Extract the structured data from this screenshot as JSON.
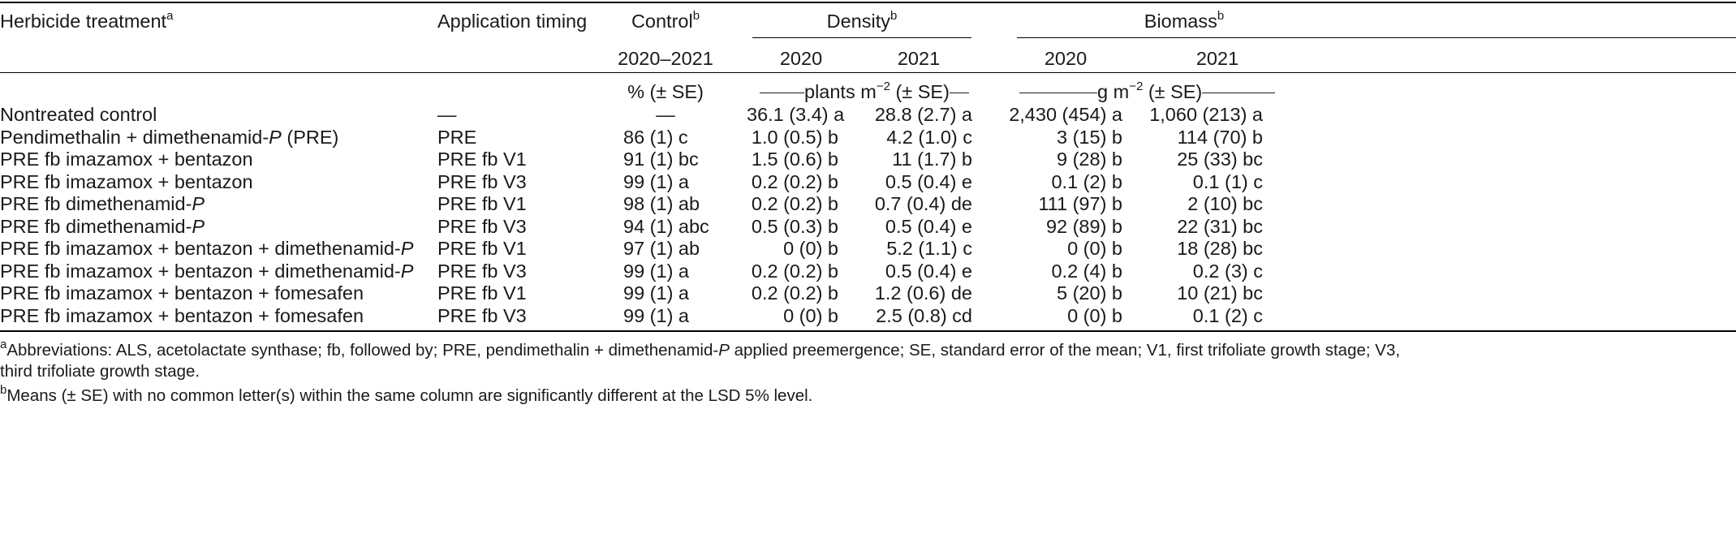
{
  "header": {
    "treatment": "Herbicide treatment",
    "treatment_sup": "a",
    "timing": "Application timing",
    "control": "Control",
    "control_sup": "b",
    "density": "Density",
    "density_sup": "b",
    "biomass": "Biomass",
    "biomass_sup": "b",
    "control_years": "2020–2021",
    "density_2020": "2020",
    "density_2021": "2021",
    "biomass_2020": "2020",
    "biomass_2021": "2021",
    "control_unit": "% (± SE)",
    "density_unit_pre": "plants m",
    "density_unit_exp": "−2",
    "density_unit_post": " (± SE)",
    "biomass_unit_pre": "g m",
    "biomass_unit_exp": "−2",
    "biomass_unit_post": " (± SE)"
  },
  "rows": [
    {
      "t1": "Nontreated control",
      "i1": "",
      "t2": "",
      "i2": "",
      "t3": "",
      "timing": "—",
      "control": "—",
      "d2020": "36.1 (3.4) a",
      "d2021": "28.8 (2.7) a",
      "b2020": "2,430 (454) a",
      "b2021": "1,060 (213) a"
    },
    {
      "t1": "Pendimethalin + dimethenamid-",
      "i1": "P",
      "t2": " (PRE)",
      "i2": "",
      "t3": "",
      "timing": "PRE",
      "control": "86 (1) c",
      "d2020": "1.0 (0.5) b",
      "d2021": "4.2 (1.0) c",
      "b2020": "3 (15) b",
      "b2021": "114 (70) b"
    },
    {
      "t1": "PRE fb imazamox + bentazon",
      "i1": "",
      "t2": "",
      "i2": "",
      "t3": "",
      "timing": "PRE fb V1",
      "control": "91 (1) bc",
      "d2020": "1.5 (0.6) b",
      "d2021": "11 (1.7) b",
      "b2020": "9 (28) b",
      "b2021": "25 (33) bc"
    },
    {
      "t1": "PRE fb imazamox + bentazon",
      "i1": "",
      "t2": "",
      "i2": "",
      "t3": "",
      "timing": "PRE fb V3",
      "control": "99 (1) a",
      "d2020": "0.2 (0.2) b",
      "d2021": "0.5 (0.4) e",
      "b2020": "0.1 (2) b",
      "b2021": "0.1 (1) c"
    },
    {
      "t1": "PRE fb dimethenamid-",
      "i1": "P",
      "t2": "",
      "i2": "",
      "t3": "",
      "timing": "PRE fb V1",
      "control": "98 (1) ab",
      "d2020": "0.2 (0.2) b",
      "d2021": "0.7 (0.4) de",
      "b2020": "111 (97) b",
      "b2021": "2 (10) bc"
    },
    {
      "t1": "PRE fb dimethenamid-",
      "i1": "P",
      "t2": "",
      "i2": "",
      "t3": "",
      "timing": "PRE fb V3",
      "control": "94 (1) abc",
      "d2020": "0.5 (0.3) b",
      "d2021": "0.5 (0.4) e",
      "b2020": "92 (89) b",
      "b2021": "22 (31) bc"
    },
    {
      "t1": "PRE fb imazamox + bentazon + dimethenamid-",
      "i1": "P",
      "t2": "",
      "i2": "",
      "t3": "",
      "timing": "PRE fb V1",
      "control": "97 (1) ab",
      "d2020": "0 (0) b",
      "d2021": "5.2 (1.1) c",
      "b2020": "0 (0) b",
      "b2021": "18 (28) bc"
    },
    {
      "t1": "PRE fb imazamox + bentazon + dimethenamid-",
      "i1": "P",
      "t2": "",
      "i2": "",
      "t3": "",
      "timing": "PRE fb V3",
      "control": "99 (1) a",
      "d2020": "0.2 (0.2) b",
      "d2021": "0.5 (0.4) e",
      "b2020": "0.2 (4) b",
      "b2021": "0.2 (3) c"
    },
    {
      "t1": "PRE fb imazamox + bentazon + fomesafen",
      "i1": "",
      "t2": "",
      "i2": "",
      "t3": "",
      "timing": "PRE fb V1",
      "control": "99 (1) a",
      "d2020": "0.2 (0.2) b",
      "d2021": "1.2 (0.6) de",
      "b2020": "5 (20) b",
      "b2021": "10 (21) bc"
    },
    {
      "t1": "PRE fb imazamox + bentazon + fomesafen",
      "i1": "",
      "t2": "",
      "i2": "",
      "t3": "",
      "timing": "PRE fb V3",
      "control": "99 (1) a",
      "d2020": "0 (0) b",
      "d2021": "2.5 (0.8) cd",
      "b2020": "0 (0) b",
      "b2021": "0.1 (2) c"
    }
  ],
  "footnotes": {
    "a_mark": "a",
    "a_text1": "Abbreviations: ALS, acetolactate synthase; fb, followed by; PRE, pendimethalin + dimethenamid-",
    "a_italic": "P",
    "a_text2": " applied preemergence; SE, standard error of the mean; V1, first trifoliate growth stage; V3,",
    "a_text3": "third trifoliate growth stage.",
    "b_mark": "b",
    "b_text": "Means (± SE) with no common letter(s) within the same column are significantly different at the LSD 5% level."
  }
}
